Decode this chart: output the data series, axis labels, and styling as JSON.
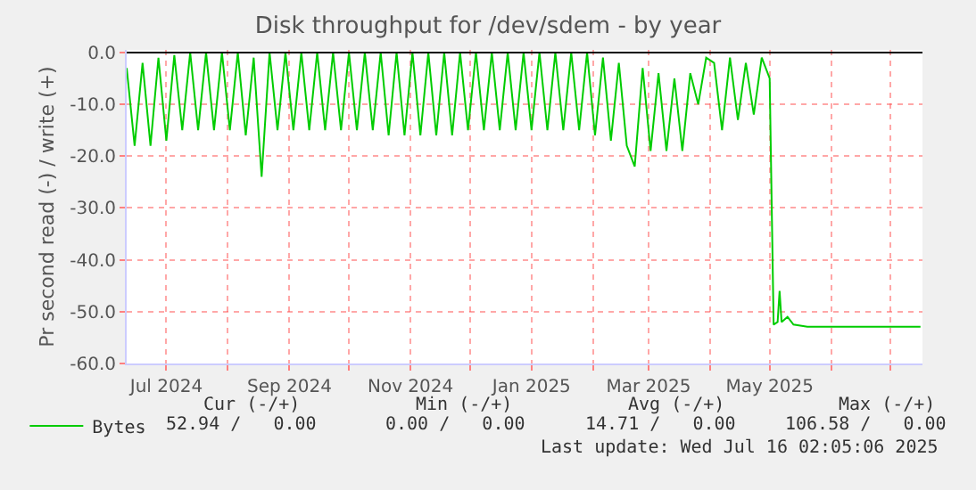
{
  "chart_data": {
    "type": "line",
    "title": "Disk throughput for /dev/sdem - by year",
    "ylabel": "Pr second read (-) / write (+)",
    "xlim": [
      "2024-06-11",
      "2025-07-17"
    ],
    "xticks": [
      {
        "value": "2024-07-01",
        "label": "Jul 2024"
      },
      {
        "value": "2024-08-01",
        "label": null
      },
      {
        "value": "2024-09-01",
        "label": "Sep 2024"
      },
      {
        "value": "2024-10-01",
        "label": null
      },
      {
        "value": "2024-11-01",
        "label": "Nov 2024"
      },
      {
        "value": "2024-12-01",
        "label": null
      },
      {
        "value": "2025-01-01",
        "label": "Jan 2025"
      },
      {
        "value": "2025-02-01",
        "label": null
      },
      {
        "value": "2025-03-01",
        "label": "Mar 2025"
      },
      {
        "value": "2025-04-01",
        "label": null
      },
      {
        "value": "2025-05-01",
        "label": "May 2025"
      },
      {
        "value": "2025-06-01",
        "label": null
      },
      {
        "value": "2025-07-01",
        "label": null
      }
    ],
    "ylim": [
      -60,
      0.5
    ],
    "yticks": [
      {
        "value": 0,
        "label": "0.0"
      },
      {
        "value": -10,
        "label": "-10.0"
      },
      {
        "value": -20,
        "label": "-20.0"
      },
      {
        "value": -30,
        "label": "-30.0"
      },
      {
        "value": -40,
        "label": "-40.0"
      },
      {
        "value": -50,
        "label": "-50.0"
      },
      {
        "value": -60,
        "label": "-60.0"
      }
    ],
    "grid": true,
    "legend": "bottom left",
    "marker": "none",
    "line_style": "solid",
    "ref_lines": [
      {
        "axis": "y",
        "value": 0,
        "color": "#000000"
      }
    ],
    "x": [
      "2024-06-11",
      "2024-06-15",
      "2024-06-19",
      "2024-06-23",
      "2024-06-27",
      "2024-07-01",
      "2024-07-05",
      "2024-07-09",
      "2024-07-13",
      "2024-07-17",
      "2024-07-21",
      "2024-07-25",
      "2024-07-29",
      "2024-08-02",
      "2024-08-06",
      "2024-08-10",
      "2024-08-14",
      "2024-08-18",
      "2024-08-22",
      "2024-08-26",
      "2024-08-30",
      "2024-09-03",
      "2024-09-07",
      "2024-09-11",
      "2024-09-15",
      "2024-09-19",
      "2024-09-23",
      "2024-09-27",
      "2024-10-01",
      "2024-10-05",
      "2024-10-09",
      "2024-10-13",
      "2024-10-17",
      "2024-10-21",
      "2024-10-25",
      "2024-10-29",
      "2024-11-02",
      "2024-11-06",
      "2024-11-10",
      "2024-11-14",
      "2024-11-18",
      "2024-11-22",
      "2024-11-26",
      "2024-11-30",
      "2024-12-04",
      "2024-12-08",
      "2024-12-12",
      "2024-12-16",
      "2024-12-20",
      "2024-12-24",
      "2024-12-28",
      "2025-01-01",
      "2025-01-05",
      "2025-01-09",
      "2025-01-13",
      "2025-01-17",
      "2025-01-21",
      "2025-01-25",
      "2025-01-29",
      "2025-02-02",
      "2025-02-06",
      "2025-02-10",
      "2025-02-14",
      "2025-02-18",
      "2025-02-22",
      "2025-02-26",
      "2025-03-02",
      "2025-03-06",
      "2025-03-10",
      "2025-03-14",
      "2025-03-18",
      "2025-03-22",
      "2025-03-26",
      "2025-03-30",
      "2025-04-03",
      "2025-04-07",
      "2025-04-11",
      "2025-04-15",
      "2025-04-19",
      "2025-04-23",
      "2025-04-27",
      "2025-05-01",
      "2025-05-03",
      "2025-05-05",
      "2025-05-06",
      "2025-05-07",
      "2025-05-10",
      "2025-05-13",
      "2025-05-20",
      "2025-07-16"
    ],
    "series": [
      {
        "name": "Bytes",
        "color": "#00cc00",
        "values": [
          -3,
          -18,
          -2,
          -18,
          -1,
          -17,
          -0.5,
          -15,
          0,
          -15,
          0,
          -15,
          0,
          -15,
          0,
          -16,
          -1,
          -24,
          0,
          -15,
          0,
          -15,
          0,
          -15,
          0,
          -15,
          0,
          -15,
          0,
          -15,
          0,
          -15,
          0,
          -16,
          0,
          -16,
          0,
          -16,
          0,
          -16,
          0,
          -16,
          0,
          -15,
          0,
          -15,
          0,
          -15,
          0,
          -15,
          0,
          -15,
          0,
          -15,
          0,
          -15,
          0,
          -15,
          0,
          -16,
          -1,
          -17,
          -2,
          -18,
          -22,
          -3,
          -19,
          -4,
          -19,
          -5,
          -19,
          -4,
          -10,
          -1,
          -2,
          -15,
          -1,
          -13,
          -2,
          -12,
          -1,
          -5,
          -52.5,
          -52,
          -46,
          -52,
          -51,
          -52.5,
          -52.9,
          -52.9
        ]
      }
    ],
    "annotations": [
      "Cur (-/+)",
      "Min (-/+)",
      "Avg (-/+)",
      "Max (-/+)",
      "52.94 /   0.00",
      "0.00 /   0.00",
      "14.71 /   0.00",
      "106.58 /   0.00",
      "Last update: Wed Jul 16 02:05:06 2025"
    ]
  }
}
